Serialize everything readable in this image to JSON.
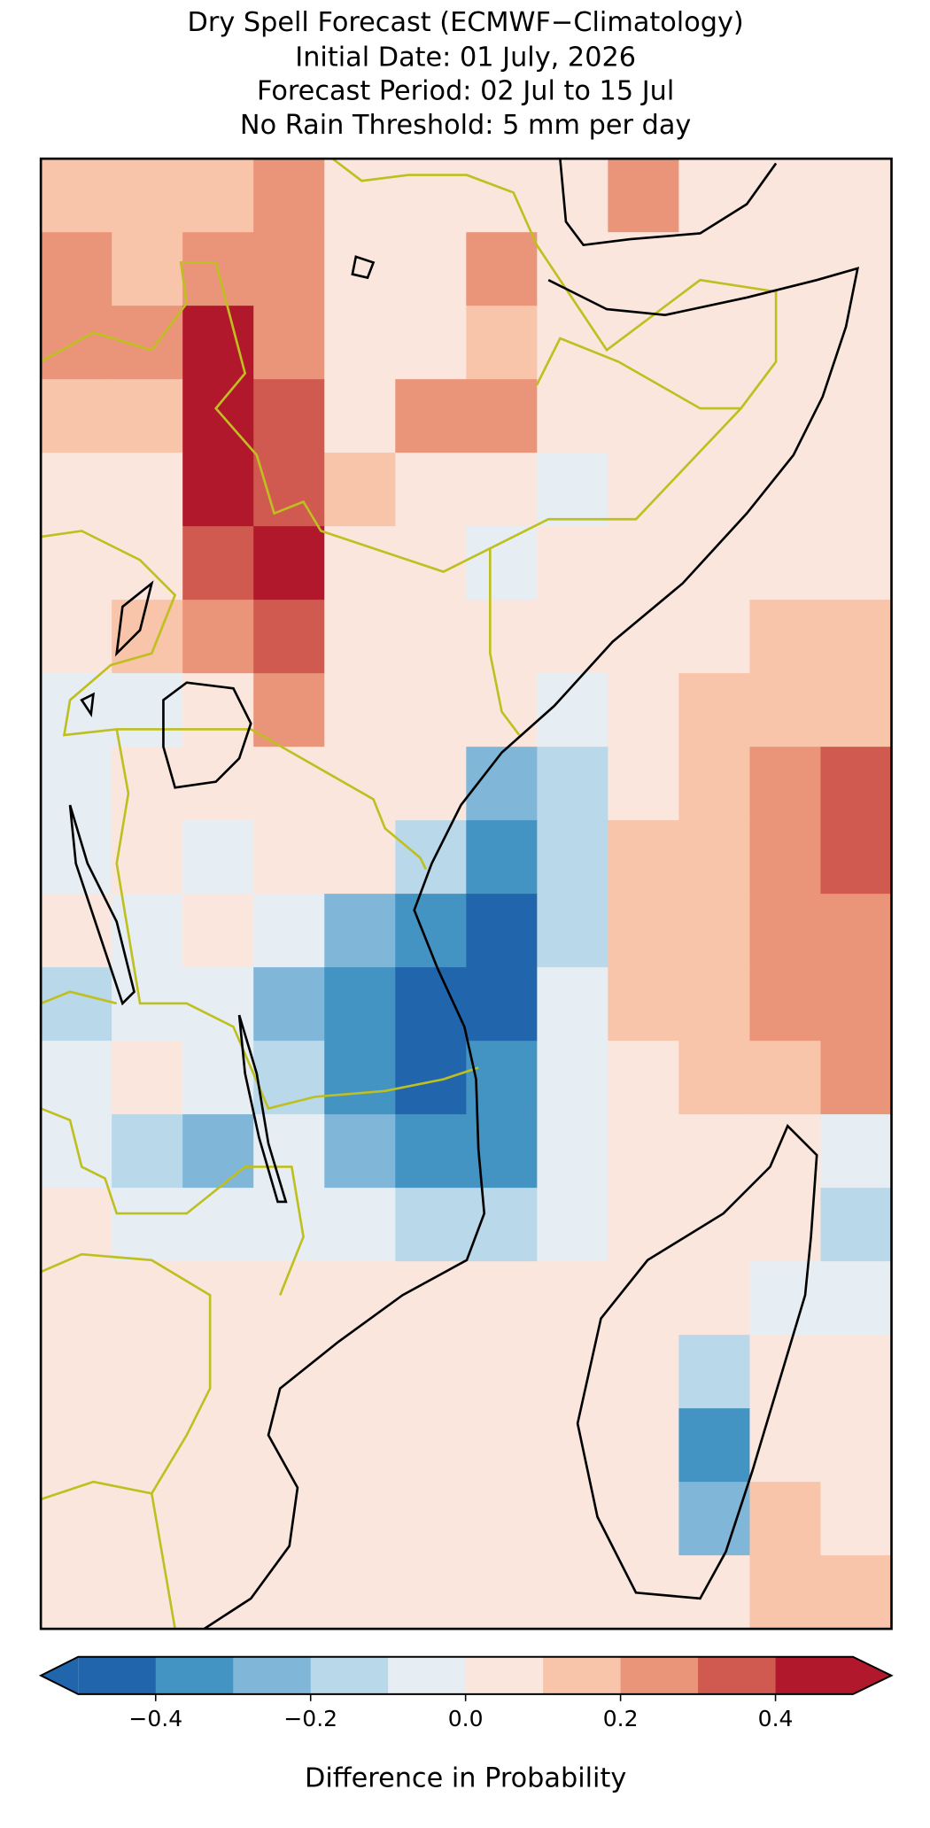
{
  "chart_data": {
    "type": "heatmap",
    "title": [
      "Dry Spell Forecast (ECMWF−Climatology)",
      "Initial Date: 01 July, 2026",
      "Forecast Period: 02 Jul to 15 Jul",
      "No Rain Threshold: 5 mm per day"
    ],
    "colorbar_label": "Difference in Probability",
    "levels": [
      -0.5,
      -0.4,
      -0.3,
      -0.2,
      -0.1,
      0,
      0.1,
      0.2,
      0.3,
      0.4,
      0.5
    ],
    "colors": [
      "#2166ac",
      "#4393c3",
      "#80b6d8",
      "#b9d9ea",
      "#e6eef3",
      "#fbe6dd",
      "#f8c4aa",
      "#ea9479",
      "#d05a4f",
      "#b2182b"
    ],
    "cticks": [
      {
        "value": -0.4,
        "label": "−0.4"
      },
      {
        "value": -0.2,
        "label": "−0.2"
      },
      {
        "value": 0,
        "label": "0.0"
      },
      {
        "value": 0.2,
        "label": "0.2"
      },
      {
        "value": 0.4,
        "label": "0.4"
      }
    ],
    "values": [
      [
        0.1,
        0.1,
        0.15,
        0.2,
        0.05,
        0.0,
        0.05,
        0.05,
        0.2,
        0.05,
        0.05,
        0.05
      ],
      [
        0.2,
        0.15,
        0.2,
        0.25,
        0.05,
        0.0,
        0.2,
        0.05,
        0.05,
        0.05,
        0.05,
        0.05
      ],
      [
        0.2,
        0.2,
        0.45,
        0.2,
        0.05,
        0.05,
        0.15,
        0.05,
        0.05,
        0.05,
        0.05,
        0.05
      ],
      [
        0.1,
        0.15,
        0.45,
        0.3,
        0.05,
        0.25,
        0.25,
        0.0,
        0.05,
        0.05,
        0.05,
        0.05
      ],
      [
        0.0,
        0.05,
        0.45,
        0.35,
        0.15,
        0.05,
        0.0,
        -0.05,
        0.05,
        0.05,
        0.05,
        0.05
      ],
      [
        0.0,
        0.05,
        0.35,
        0.4,
        0.05,
        0.0,
        -0.1,
        0.0,
        0.05,
        0.05,
        0.05,
        0.05
      ],
      [
        0.05,
        0.15,
        0.25,
        0.3,
        0.05,
        0.0,
        0.0,
        0.05,
        0.05,
        0.05,
        0.1,
        0.15
      ],
      [
        -0.05,
        -0.1,
        0.05,
        0.2,
        0.05,
        0.0,
        0.0,
        -0.1,
        0.05,
        0.1,
        0.1,
        0.15
      ],
      [
        -0.1,
        0.0,
        0.0,
        0.0,
        0.0,
        0.0,
        -0.25,
        -0.15,
        0.05,
        0.1,
        0.2,
        0.3
      ],
      [
        -0.05,
        0.0,
        -0.05,
        0.0,
        0.0,
        -0.2,
        -0.4,
        -0.15,
        0.1,
        0.15,
        0.2,
        0.3
      ],
      [
        0.0,
        -0.05,
        0.0,
        -0.05,
        -0.3,
        -0.35,
        -0.45,
        -0.2,
        0.1,
        0.15,
        0.2,
        0.2
      ],
      [
        -0.15,
        -0.05,
        -0.05,
        -0.25,
        -0.4,
        -0.45,
        -0.45,
        -0.1,
        0.1,
        0.15,
        0.2,
        0.25
      ],
      [
        -0.05,
        0.0,
        -0.1,
        -0.2,
        -0.35,
        -0.45,
        -0.4,
        -0.05,
        0.05,
        0.15,
        0.15,
        0.2
      ],
      [
        -0.05,
        -0.15,
        -0.3,
        -0.1,
        -0.3,
        -0.35,
        -0.4,
        -0.05,
        0.0,
        0.05,
        0.05,
        -0.05
      ],
      [
        0.0,
        -0.1,
        -0.1,
        -0.05,
        -0.1,
        -0.15,
        -0.2,
        -0.05,
        0.05,
        0.05,
        0.0,
        -0.2
      ],
      [
        0.0,
        0.0,
        0.05,
        0.05,
        0.05,
        0.05,
        0.0,
        0.05,
        0.05,
        0.05,
        -0.1,
        -0.1
      ],
      [
        0.0,
        0.0,
        0.05,
        0.05,
        0.05,
        0.05,
        0.05,
        0.05,
        0.05,
        -0.2,
        0.05,
        0.05
      ],
      [
        0.05,
        0.0,
        0.0,
        0.05,
        0.05,
        0.05,
        0.05,
        0.05,
        0.05,
        -0.35,
        0.05,
        0.05
      ],
      [
        0.05,
        0.0,
        0.0,
        0.0,
        0.0,
        0.05,
        0.05,
        0.05,
        0.05,
        -0.3,
        0.1,
        0.05
      ],
      [
        0.05,
        0.05,
        0.0,
        0.0,
        0.05,
        0.05,
        0.05,
        0.05,
        0.05,
        0.05,
        0.15,
        0.1
      ]
    ]
  }
}
